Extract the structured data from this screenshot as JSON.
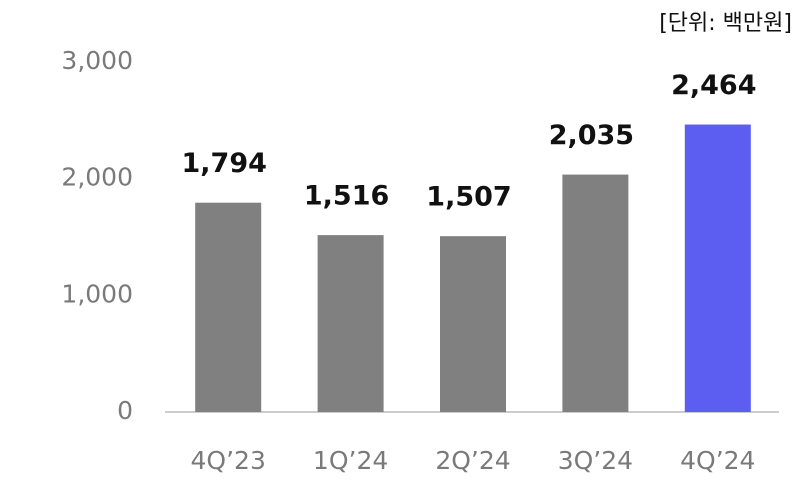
{
  "chart_data": {
    "type": "bar",
    "unit_label": "[단위: 백만원]",
    "categories": [
      "4Q’23",
      "1Q’24",
      "2Q’24",
      "3Q’24",
      "4Q’24"
    ],
    "values": [
      1794,
      1516,
      1507,
      2035,
      2464
    ],
    "value_labels": [
      "1,794",
      "1,516",
      "1,507",
      "2,035",
      "2,464"
    ],
    "colors": [
      "#808080",
      "#808080",
      "#808080",
      "#808080",
      "#5b5ef0"
    ],
    "ylim": [
      0,
      3000
    ],
    "yticks": [
      0,
      {
        "value": 1000,
        "label": "1,000"
      },
      {
        "value": 2000,
        "label": "2,000"
      },
      {
        "value": 3000,
        "label": "3,000"
      }
    ],
    "grid": false
  }
}
